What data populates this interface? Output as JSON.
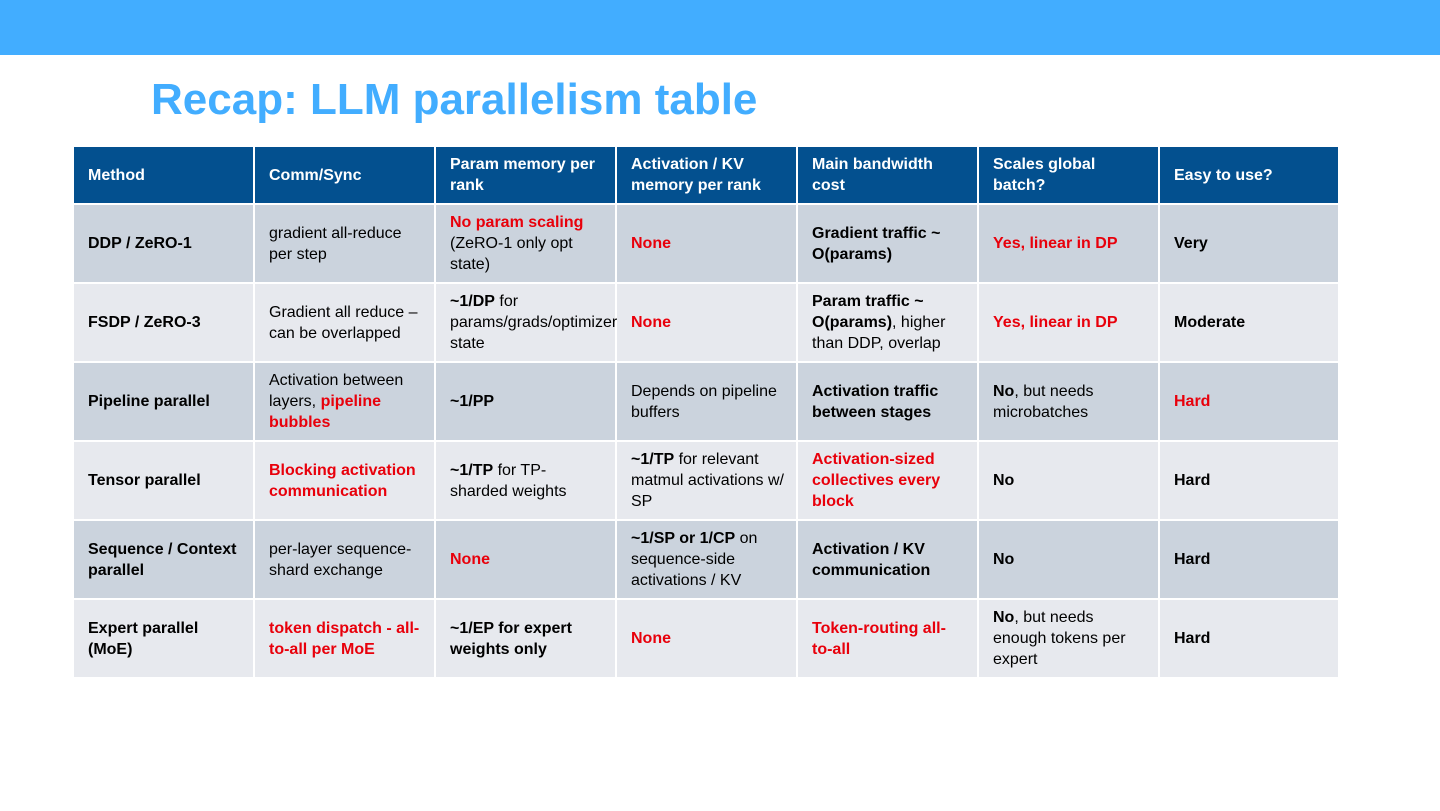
{
  "slide": {
    "title": "Recap: LLM parallelism table"
  },
  "table": {
    "headers": [
      "Method",
      "Comm/Sync",
      "Param memory per rank",
      "Activation / KV memory per rank",
      "Main bandwidth cost",
      "Scales global batch?",
      "Easy to use?"
    ],
    "rows": [
      {
        "method": "DDP / ZeRO-1",
        "comm": [
          {
            "t": "gradient all-reduce per step",
            "s": "n"
          }
        ],
        "param": [
          {
            "t": "No param scaling",
            "s": "r"
          },
          {
            "t": " (ZeRO-1 only opt state)",
            "s": "n"
          }
        ],
        "act": [
          {
            "t": "None",
            "s": "r"
          }
        ],
        "bw": [
          {
            "t": "Gradient traffic ~ O(params)",
            "s": "b"
          }
        ],
        "scale": [
          {
            "t": "Yes, linear in DP",
            "s": "r"
          }
        ],
        "easy": [
          {
            "t": "Very",
            "s": "b"
          }
        ]
      },
      {
        "method": "FSDP / ZeRO-3",
        "comm": [
          {
            "t": "Gradient all reduce – can be overlapped",
            "s": "n"
          }
        ],
        "param": [
          {
            "t": "~1/DP",
            "s": "b"
          },
          {
            "t": " for params/grads/optimizer state",
            "s": "n"
          }
        ],
        "act": [
          {
            "t": "None",
            "s": "r"
          }
        ],
        "bw": [
          {
            "t": "Param traffic ~ O(params)",
            "s": "b"
          },
          {
            "t": ", higher than DDP, overlap",
            "s": "n"
          }
        ],
        "scale": [
          {
            "t": "Yes, linear in DP",
            "s": "r"
          }
        ],
        "easy": [
          {
            "t": "Moderate",
            "s": "b"
          }
        ]
      },
      {
        "method": "Pipeline parallel",
        "comm": [
          {
            "t": "Activation between layers, ",
            "s": "n"
          },
          {
            "t": "pipeline bubbles",
            "s": "r"
          }
        ],
        "param": [
          {
            "t": "~1/PP",
            "s": "b"
          }
        ],
        "act": [
          {
            "t": "Depends on pipeline buffers",
            "s": "n"
          }
        ],
        "bw": [
          {
            "t": "Activation traffic between stages",
            "s": "b"
          }
        ],
        "scale": [
          {
            "t": "No",
            "s": "b"
          },
          {
            "t": ", but needs microbatches",
            "s": "n"
          }
        ],
        "easy": [
          {
            "t": "Hard",
            "s": "r"
          }
        ]
      },
      {
        "method": "Tensor parallel",
        "comm": [
          {
            "t": "Blocking activation communication",
            "s": "r"
          }
        ],
        "param": [
          {
            "t": "~1/TP",
            "s": "b"
          },
          {
            "t": " for TP-sharded weights",
            "s": "n"
          }
        ],
        "act": [
          {
            "t": "~1/TP",
            "s": "b"
          },
          {
            "t": " for relevant matmul activations w/ SP",
            "s": "n"
          }
        ],
        "bw": [
          {
            "t": "Activation-sized collectives every block",
            "s": "r"
          }
        ],
        "scale": [
          {
            "t": "No",
            "s": "b"
          }
        ],
        "easy": [
          {
            "t": "Hard",
            "s": "b"
          }
        ]
      },
      {
        "method": "Sequence / Context parallel",
        "comm": [
          {
            "t": "per-layer sequence-shard exchange",
            "s": "n"
          }
        ],
        "param": [
          {
            "t": "None",
            "s": "r"
          }
        ],
        "act": [
          {
            "t": "~1/SP or 1/CP",
            "s": "b"
          },
          {
            "t": " on sequence-side activations / KV",
            "s": "n"
          }
        ],
        "bw": [
          {
            "t": "Activation / KV communication",
            "s": "b"
          }
        ],
        "scale": [
          {
            "t": "No",
            "s": "b"
          }
        ],
        "easy": [
          {
            "t": "Hard",
            "s": "b"
          }
        ]
      },
      {
        "method": "Expert parallel (MoE)",
        "comm": [
          {
            "t": "token dispatch - all-to-all per MoE",
            "s": "r"
          }
        ],
        "param": [
          {
            "t": "~1/EP for expert weights only",
            "s": "b"
          }
        ],
        "act": [
          {
            "t": "None",
            "s": "r"
          }
        ],
        "bw": [
          {
            "t": "Token-routing all-to-all",
            "s": "r"
          }
        ],
        "scale": [
          {
            "t": "No",
            "s": "b"
          },
          {
            "t": ", but needs enough tokens per expert",
            "s": "n"
          }
        ],
        "easy": [
          {
            "t": "Hard",
            "s": "b"
          }
        ]
      }
    ]
  }
}
